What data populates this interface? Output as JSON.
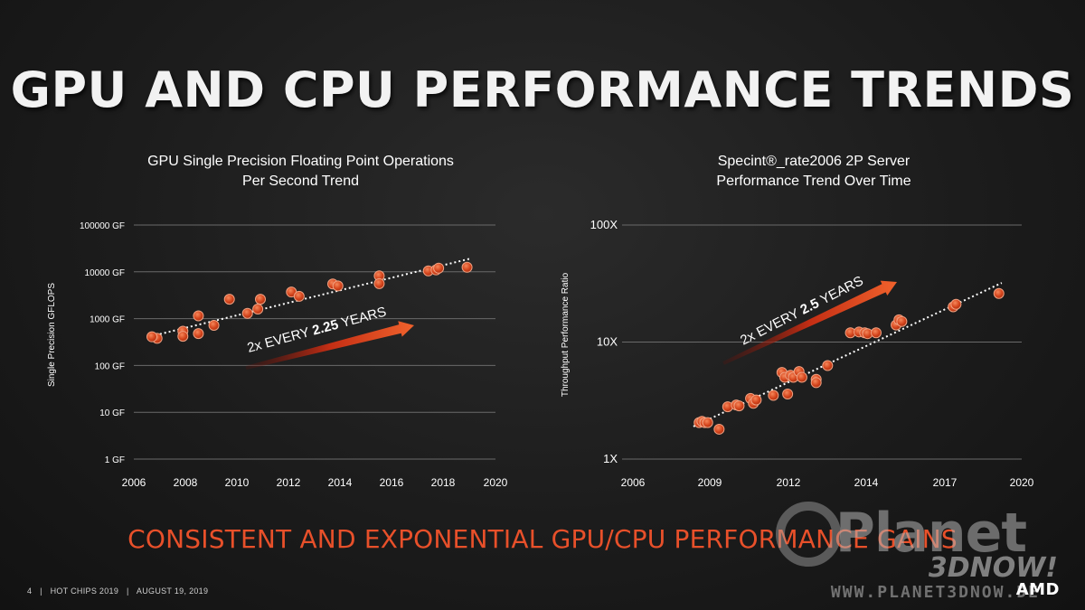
{
  "title": "GPU AND CPU PERFORMANCE TRENDS",
  "tagline": "CONSISTENT AND EXPONENTIAL GPU/CPU PERFORMANCE GAINS",
  "footer": {
    "page": "4",
    "event": "HOT CHIPS 2019",
    "date": "AUGUST 19, 2019"
  },
  "logo": "AMD",
  "watermark": {
    "word": "Planet",
    "sub": "3DNOW!",
    "url": "WWW.PLANET3DNOW.DE"
  },
  "colors": {
    "accent": "#e8502a",
    "point": "#d9481f",
    "point_edge": "#f0a080",
    "grid": "#6a6a6a"
  },
  "chart_data": [
    {
      "type": "scatter",
      "title_line1": "GPU Single Precision Floating Point Operations",
      "title_line2": "Per Second Trend",
      "xlabel": "",
      "ylabel": "Single Precision GFLOPS",
      "x_ticks": [
        "2006",
        "2008",
        "2010",
        "2012",
        "2014",
        "2016",
        "2018",
        "2020"
      ],
      "y_ticks": [
        "1 GF",
        "10 GF",
        "100 GF",
        "1000 GF",
        "10000 GF",
        "100000 GF"
      ],
      "xlim": [
        2006,
        2020
      ],
      "ylim": [
        1,
        100000
      ],
      "y_scale": "log",
      "annotation": {
        "pre": "2x EVERY ",
        "bold": "2.25",
        "post": " YEARS"
      },
      "trend": {
        "x": [
          2006.5,
          2019.0
        ],
        "y": [
          400,
          19000
        ]
      },
      "points": [
        {
          "x": 2006.9,
          "y": 380
        },
        {
          "x": 2006.7,
          "y": 410
        },
        {
          "x": 2007.9,
          "y": 540
        },
        {
          "x": 2007.9,
          "y": 420
        },
        {
          "x": 2008.5,
          "y": 1150
        },
        {
          "x": 2008.5,
          "y": 480
        },
        {
          "x": 2009.1,
          "y": 720
        },
        {
          "x": 2009.7,
          "y": 2600
        },
        {
          "x": 2010.4,
          "y": 1300
        },
        {
          "x": 2010.8,
          "y": 1600
        },
        {
          "x": 2010.9,
          "y": 2600
        },
        {
          "x": 2012.1,
          "y": 3700
        },
        {
          "x": 2012.4,
          "y": 3000
        },
        {
          "x": 2013.7,
          "y": 5500
        },
        {
          "x": 2013.9,
          "y": 5000
        },
        {
          "x": 2015.5,
          "y": 8200
        },
        {
          "x": 2015.5,
          "y": 5600
        },
        {
          "x": 2017.4,
          "y": 10500
        },
        {
          "x": 2017.7,
          "y": 11000
        },
        {
          "x": 2017.8,
          "y": 12000
        },
        {
          "x": 2018.9,
          "y": 12500
        }
      ]
    },
    {
      "type": "scatter",
      "title_line1": "Specint®_rate2006 2P Server",
      "title_line2": "Performance Trend Over Time",
      "xlabel": "",
      "ylabel": "Throughput Performance Ratio",
      "x_ticks": [
        "2006",
        "2009",
        "2012",
        "2014",
        "2017",
        "2020"
      ],
      "y_ticks": [
        "1X",
        "10X",
        "100X"
      ],
      "xlim": [
        2006,
        2020
      ],
      "ylim": [
        1,
        100
      ],
      "y_scale": "log",
      "annotation": {
        "pre": "2x EVERY ",
        "bold": "2.5",
        "post": " YEARS"
      },
      "trend": {
        "x": [
          2008.5,
          2019.3
        ],
        "y": [
          1.9,
          32
        ]
      },
      "points": [
        {
          "x": 2008.7,
          "y": 2.05
        },
        {
          "x": 2008.8,
          "y": 2.1
        },
        {
          "x": 2008.9,
          "y": 2.05
        },
        {
          "x": 2009.0,
          "y": 2.05
        },
        {
          "x": 2009.4,
          "y": 1.8
        },
        {
          "x": 2009.7,
          "y": 2.8
        },
        {
          "x": 2010.0,
          "y": 2.9
        },
        {
          "x": 2010.1,
          "y": 2.85
        },
        {
          "x": 2010.5,
          "y": 3.3
        },
        {
          "x": 2010.6,
          "y": 3.0
        },
        {
          "x": 2010.7,
          "y": 3.2
        },
        {
          "x": 2011.3,
          "y": 3.5
        },
        {
          "x": 2011.6,
          "y": 5.5
        },
        {
          "x": 2011.7,
          "y": 5.0
        },
        {
          "x": 2011.8,
          "y": 3.6
        },
        {
          "x": 2011.9,
          "y": 5.2
        },
        {
          "x": 2012.0,
          "y": 5.0
        },
        {
          "x": 2012.2,
          "y": 5.6
        },
        {
          "x": 2012.3,
          "y": 5.0
        },
        {
          "x": 2012.8,
          "y": 4.8
        },
        {
          "x": 2012.8,
          "y": 4.5
        },
        {
          "x": 2013.2,
          "y": 6.3
        },
        {
          "x": 2014.0,
          "y": 12.0
        },
        {
          "x": 2014.3,
          "y": 12.2
        },
        {
          "x": 2014.5,
          "y": 12.0
        },
        {
          "x": 2014.6,
          "y": 11.8
        },
        {
          "x": 2014.9,
          "y": 12.0
        },
        {
          "x": 2015.6,
          "y": 14.0
        },
        {
          "x": 2015.7,
          "y": 15.5
        },
        {
          "x": 2015.8,
          "y": 15.0
        },
        {
          "x": 2017.6,
          "y": 20.0
        },
        {
          "x": 2017.7,
          "y": 21.0
        },
        {
          "x": 2019.2,
          "y": 26.0
        }
      ]
    }
  ]
}
